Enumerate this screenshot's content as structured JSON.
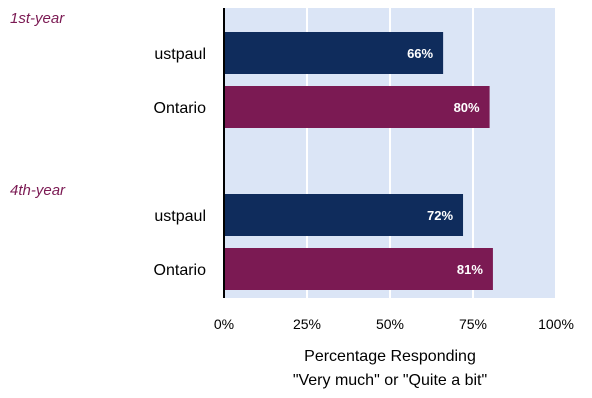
{
  "chart_data": {
    "type": "bar",
    "orientation": "horizontal",
    "groups": [
      {
        "label": "1st-year",
        "bars": [
          {
            "category": "ustpaul",
            "value": 66,
            "label": "66%",
            "color": "#0f2c5c"
          },
          {
            "category": "Ontario",
            "value": 80,
            "label": "80%",
            "color": "#7b1a53"
          }
        ]
      },
      {
        "label": "4th-year",
        "bars": [
          {
            "category": "ustpaul",
            "value": 72,
            "label": "72%",
            "color": "#0f2c5c"
          },
          {
            "category": "Ontario",
            "value": 81,
            "label": "81%",
            "color": "#7b1a53"
          }
        ]
      }
    ],
    "xlim": [
      0,
      100
    ],
    "xticks": [
      "0%",
      "25%",
      "50%",
      "75%",
      "100%"
    ],
    "xlabel_line1": "Percentage Responding",
    "xlabel_line2": "\"Very much\" or \"Quite a bit\"",
    "plot_background": "#dbe5f6",
    "group_label_color": "#7b1a53",
    "grid": "vertical",
    "legend": "none"
  }
}
